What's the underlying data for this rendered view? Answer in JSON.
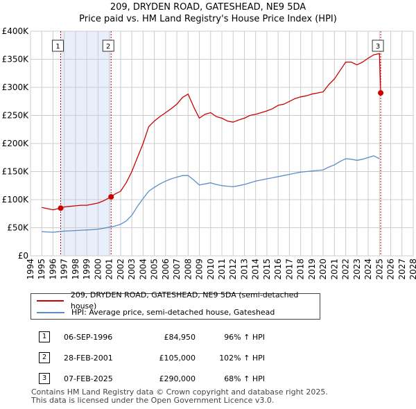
{
  "title_line1": "209, DRYDEN ROAD, GATESHEAD, NE9 5DA",
  "title_line2": "Price paid vs. HM Land Registry's House Price Index (HPI)",
  "legend": {
    "property": "209, DRYDEN ROAD, GATESHEAD, NE9 5DA (semi-detached house)",
    "hpi": "HPI: Average price, semi-detached house, Gateshead"
  },
  "colors": {
    "property": "#cc0000",
    "hpi": "#5b8cc8",
    "shade": "#e8eefa",
    "grid": "#cccccc"
  },
  "sales": [
    {
      "num": "1",
      "date": "06-SEP-1996",
      "price": "£84,950",
      "hpi_rel": "96% ↑ HPI"
    },
    {
      "num": "2",
      "date": "28-FEB-2001",
      "price": "£105,000",
      "hpi_rel": "102% ↑ HPI"
    },
    {
      "num": "3",
      "date": "07-FEB-2025",
      "price": "£290,000",
      "hpi_rel": "68% ↑ HPI"
    }
  ],
  "footer": {
    "line1": "Contains HM Land Registry data © Crown copyright and database right 2025.",
    "line2": "This data is licensed under the Open Government Licence v3.0."
  },
  "chart_data": {
    "type": "line",
    "title": "209, DRYDEN ROAD, GATESHEAD, NE9 5DA — Price paid vs. HM Land Registry's House Price Index (HPI)",
    "xlabel": "",
    "ylabel": "",
    "xlim": [
      1994,
      2028
    ],
    "ylim": [
      0,
      400000
    ],
    "x_ticks": [
      "1994",
      "1995",
      "1996",
      "1997",
      "1998",
      "1999",
      "2000",
      "2001",
      "2002",
      "2003",
      "2004",
      "2005",
      "2006",
      "2007",
      "2008",
      "2009",
      "2010",
      "2011",
      "2012",
      "2013",
      "2014",
      "2015",
      "2016",
      "2017",
      "2018",
      "2019",
      "2020",
      "2021",
      "2022",
      "2023",
      "2024",
      "2025",
      "2026",
      "2027",
      "2028"
    ],
    "y_ticks": [
      {
        "value": 0,
        "label": "£0"
      },
      {
        "value": 50000,
        "label": "£50K"
      },
      {
        "value": 100000,
        "label": "£100K"
      },
      {
        "value": 150000,
        "label": "£150K"
      },
      {
        "value": 200000,
        "label": "£200K"
      },
      {
        "value": 250000,
        "label": "£250K"
      },
      {
        "value": 300000,
        "label": "£300K"
      },
      {
        "value": 350000,
        "label": "£350K"
      },
      {
        "value": 400000,
        "label": "£400K"
      }
    ],
    "shaded_ranges": [
      [
        1996.68,
        2001.16
      ]
    ],
    "series": [
      {
        "name": "209, DRYDEN ROAD, GATESHEAD, NE9 5DA (semi-detached house)",
        "x": [
          1995.0,
          1995.5,
          1996.0,
          1996.68,
          1997.0,
          1997.5,
          1998.0,
          1998.5,
          1999.0,
          1999.5,
          2000.0,
          2000.5,
          2001.16,
          2001.5,
          2002.0,
          2002.5,
          2003.0,
          2003.5,
          2004.0,
          2004.5,
          2005.0,
          2005.5,
          2006.0,
          2006.5,
          2007.0,
          2007.5,
          2008.0,
          2008.5,
          2009.0,
          2009.5,
          2010.0,
          2010.5,
          2011.0,
          2011.5,
          2012.0,
          2012.5,
          2013.0,
          2013.5,
          2014.0,
          2014.5,
          2015.0,
          2015.5,
          2016.0,
          2016.5,
          2017.0,
          2017.5,
          2018.0,
          2018.5,
          2019.0,
          2019.5,
          2020.0,
          2020.5,
          2021.0,
          2021.5,
          2022.0,
          2022.5,
          2023.0,
          2023.5,
          2024.0,
          2024.5,
          2025.0,
          2025.11,
          2025.2
        ],
        "values": [
          86000,
          84000,
          82000,
          84950,
          87000,
          88000,
          89000,
          90000,
          90000,
          92000,
          94000,
          98000,
          105000,
          110000,
          115000,
          130000,
          150000,
          175000,
          200000,
          230000,
          240000,
          248000,
          255000,
          262000,
          270000,
          282000,
          288000,
          265000,
          245000,
          252000,
          255000,
          248000,
          245000,
          240000,
          238000,
          242000,
          245000,
          250000,
          252000,
          255000,
          258000,
          262000,
          268000,
          270000,
          275000,
          280000,
          283000,
          285000,
          288000,
          290000,
          292000,
          305000,
          315000,
          330000,
          345000,
          345000,
          340000,
          345000,
          352000,
          358000,
          360000,
          290000,
          290000
        ]
      },
      {
        "name": "HPI: Average price, semi-detached house, Gateshead",
        "x": [
          1995.0,
          1995.5,
          1996.0,
          1996.5,
          1997.0,
          1997.5,
          1998.0,
          1998.5,
          1999.0,
          1999.5,
          2000.0,
          2000.5,
          2001.0,
          2001.5,
          2002.0,
          2002.5,
          2003.0,
          2003.5,
          2004.0,
          2004.5,
          2005.0,
          2005.5,
          2006.0,
          2006.5,
          2007.0,
          2007.5,
          2008.0,
          2008.5,
          2009.0,
          2009.5,
          2010.0,
          2010.5,
          2011.0,
          2011.5,
          2012.0,
          2012.5,
          2013.0,
          2013.5,
          2014.0,
          2014.5,
          2015.0,
          2015.5,
          2016.0,
          2016.5,
          2017.0,
          2017.5,
          2018.0,
          2018.5,
          2019.0,
          2019.5,
          2020.0,
          2020.5,
          2021.0,
          2021.5,
          2022.0,
          2022.5,
          2023.0,
          2023.5,
          2024.0,
          2024.5,
          2025.0
        ],
        "values": [
          43000,
          42500,
          42000,
          43000,
          44000,
          44500,
          45000,
          45500,
          46000,
          46500,
          47500,
          49000,
          51000,
          53000,
          56000,
          62000,
          72000,
          88000,
          102000,
          115000,
          122000,
          128000,
          133000,
          137000,
          140000,
          143000,
          143000,
          135000,
          126000,
          128000,
          130000,
          127000,
          125000,
          124000,
          123000,
          125000,
          127000,
          130000,
          133000,
          135000,
          137000,
          139000,
          141000,
          143000,
          145000,
          147000,
          149000,
          150000,
          151000,
          152000,
          153000,
          158000,
          162000,
          168000,
          173000,
          172000,
          170000,
          172000,
          175000,
          178000,
          173000
        ]
      }
    ],
    "annotations": [
      {
        "label": "1",
        "x": 1996.68,
        "y": 84950
      },
      {
        "label": "2",
        "x": 2001.16,
        "y": 105000
      },
      {
        "label": "3",
        "x": 2025.11,
        "y": 290000
      }
    ]
  }
}
